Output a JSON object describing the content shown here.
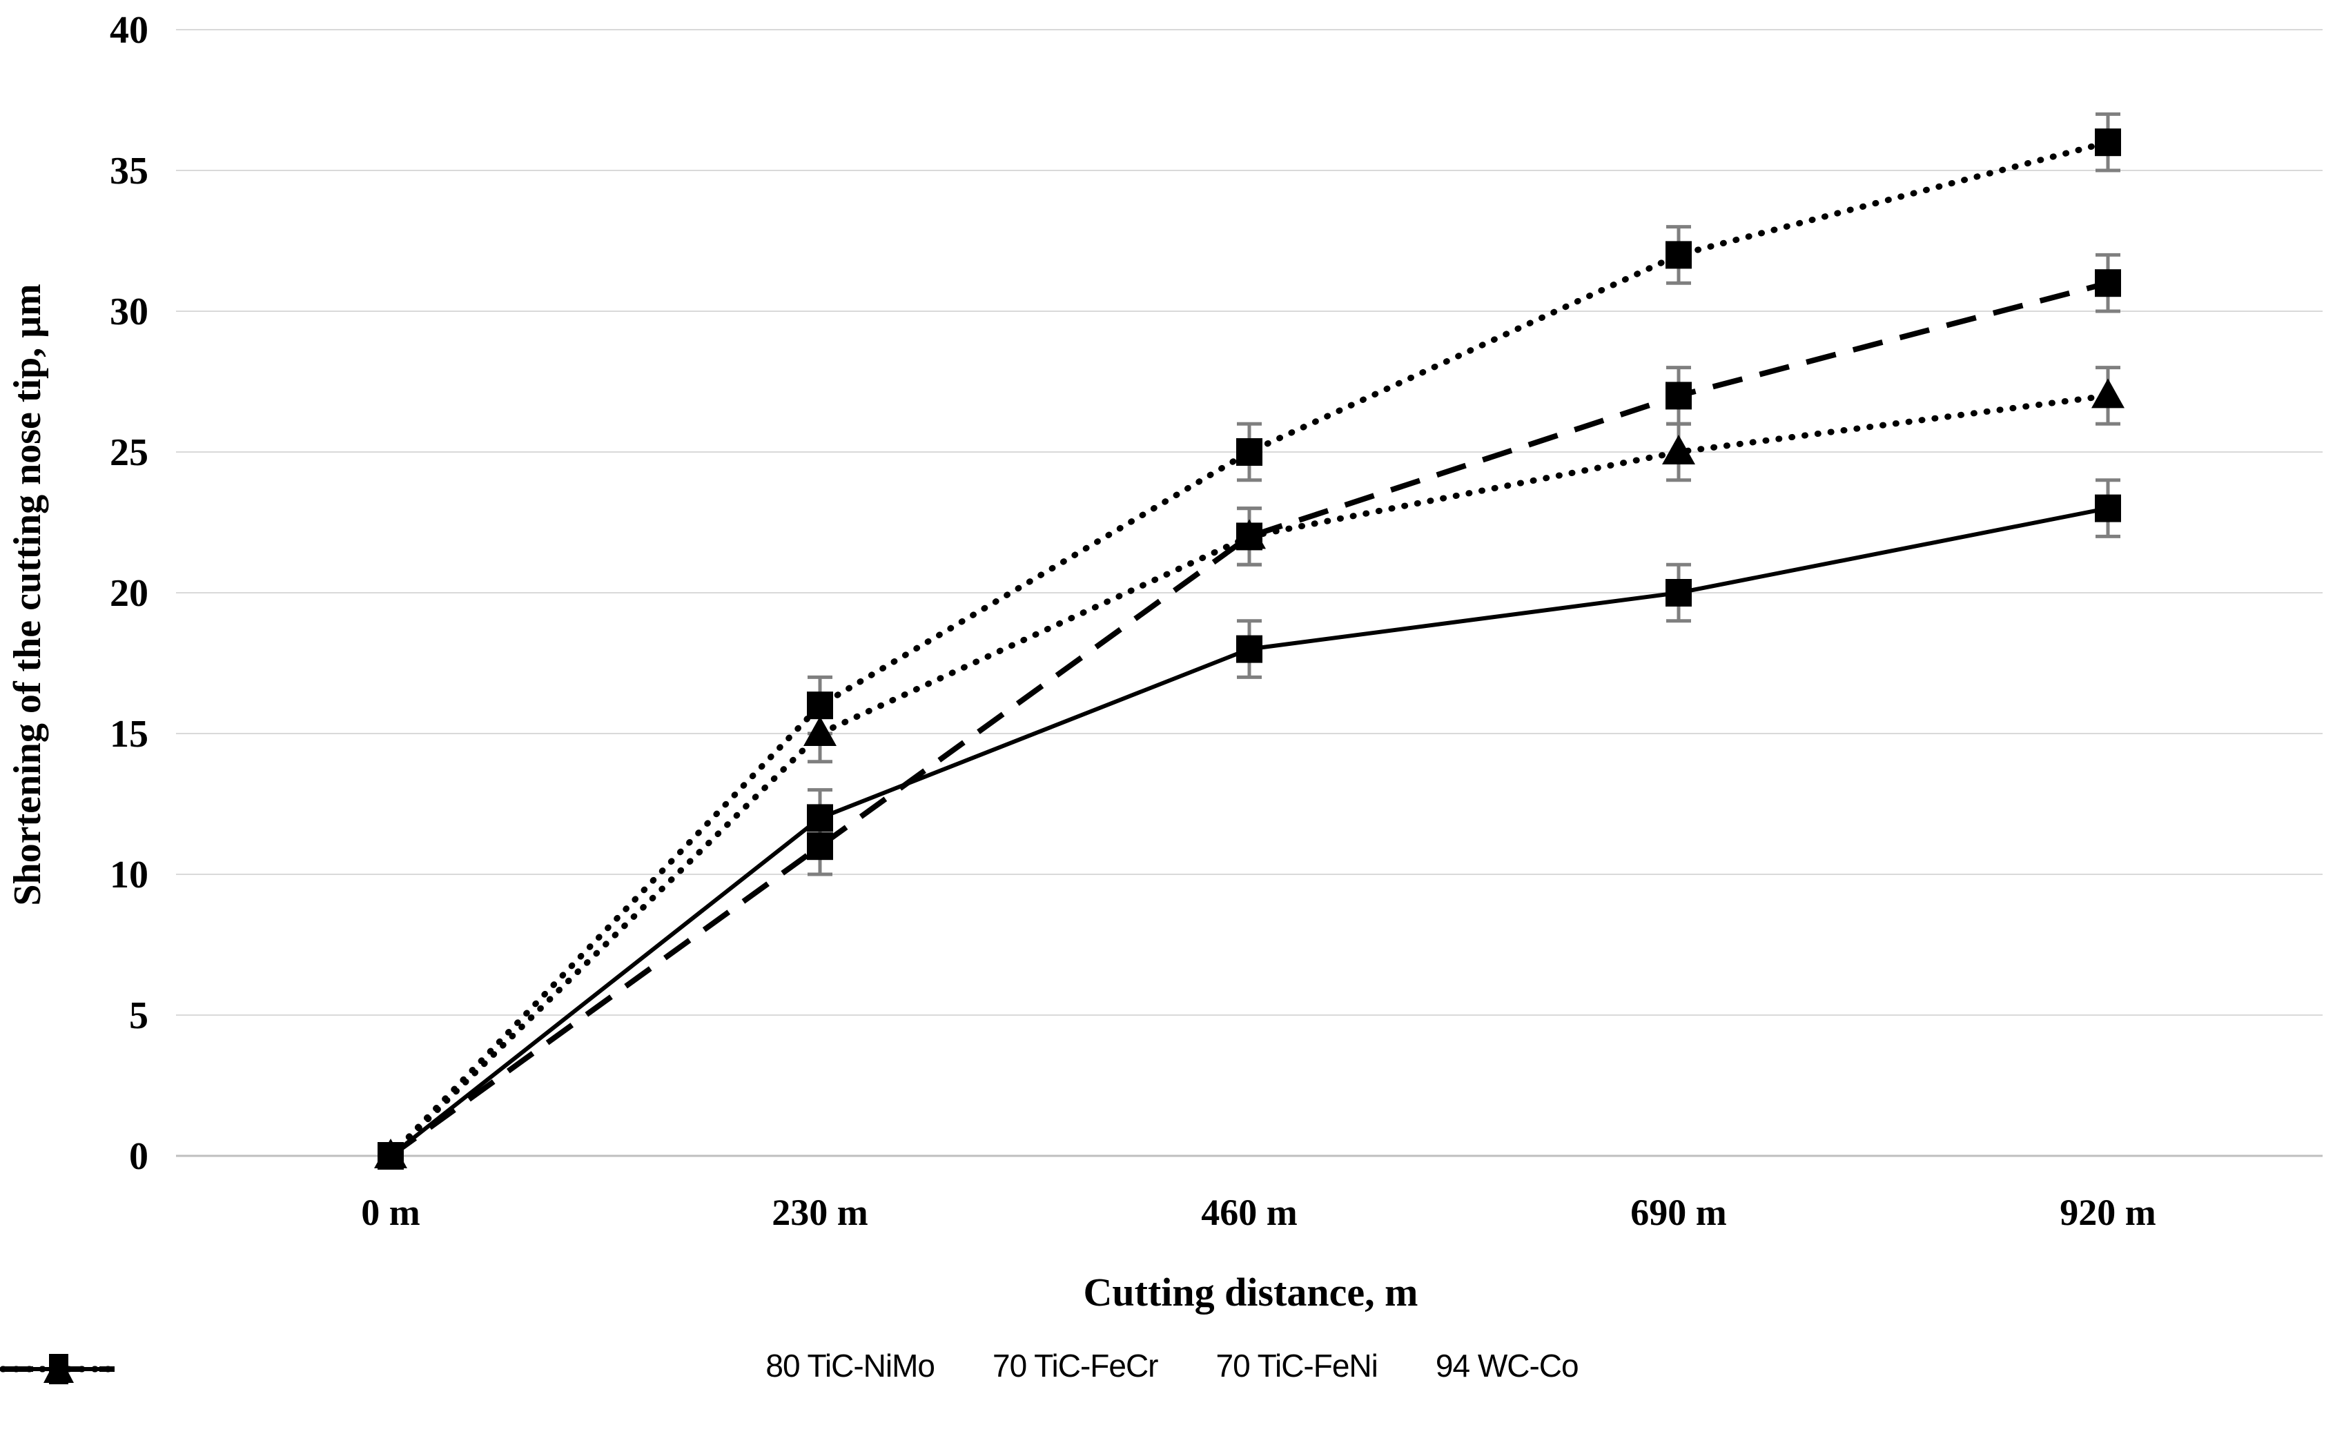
{
  "chart_data": {
    "type": "line",
    "title": "",
    "categories": [
      "0 m",
      "230 m",
      "460 m",
      "690 m",
      "920 m"
    ],
    "series": [
      {
        "name": "80 TiC-NiMo",
        "values": [
          0,
          11,
          22,
          27,
          31
        ],
        "line_style": "dashed",
        "marker": "square"
      },
      {
        "name": "70 TiC-FeCr",
        "values": [
          0,
          15,
          22,
          25,
          27
        ],
        "line_style": "dotted",
        "marker": "triangle"
      },
      {
        "name": "70 TiC-FeNi",
        "values": [
          0,
          16,
          25,
          32,
          36
        ],
        "line_style": "dotted",
        "marker": "square"
      },
      {
        "name": "94 WC-Co",
        "values": [
          0,
          12,
          18,
          20,
          23
        ],
        "line_style": "solid",
        "marker": "square"
      }
    ],
    "error_bar_plus_minus": 1,
    "xlabel": "Cutting distance, m",
    "ylabel": "Shortening of the cutting nose tip, μm",
    "ylim": [
      0,
      40
    ],
    "ytick_step": 5,
    "yticks": [
      0,
      5,
      10,
      15,
      20,
      25,
      30,
      35,
      40
    ],
    "grid": true,
    "legend_position": "bottom",
    "colors": {
      "series": "#000000",
      "gridline": "#d9d9d9",
      "axis_line": "#bfbfbf",
      "error_bar": "#7f7f7f",
      "background": "#ffffff",
      "text": "#000000"
    }
  }
}
